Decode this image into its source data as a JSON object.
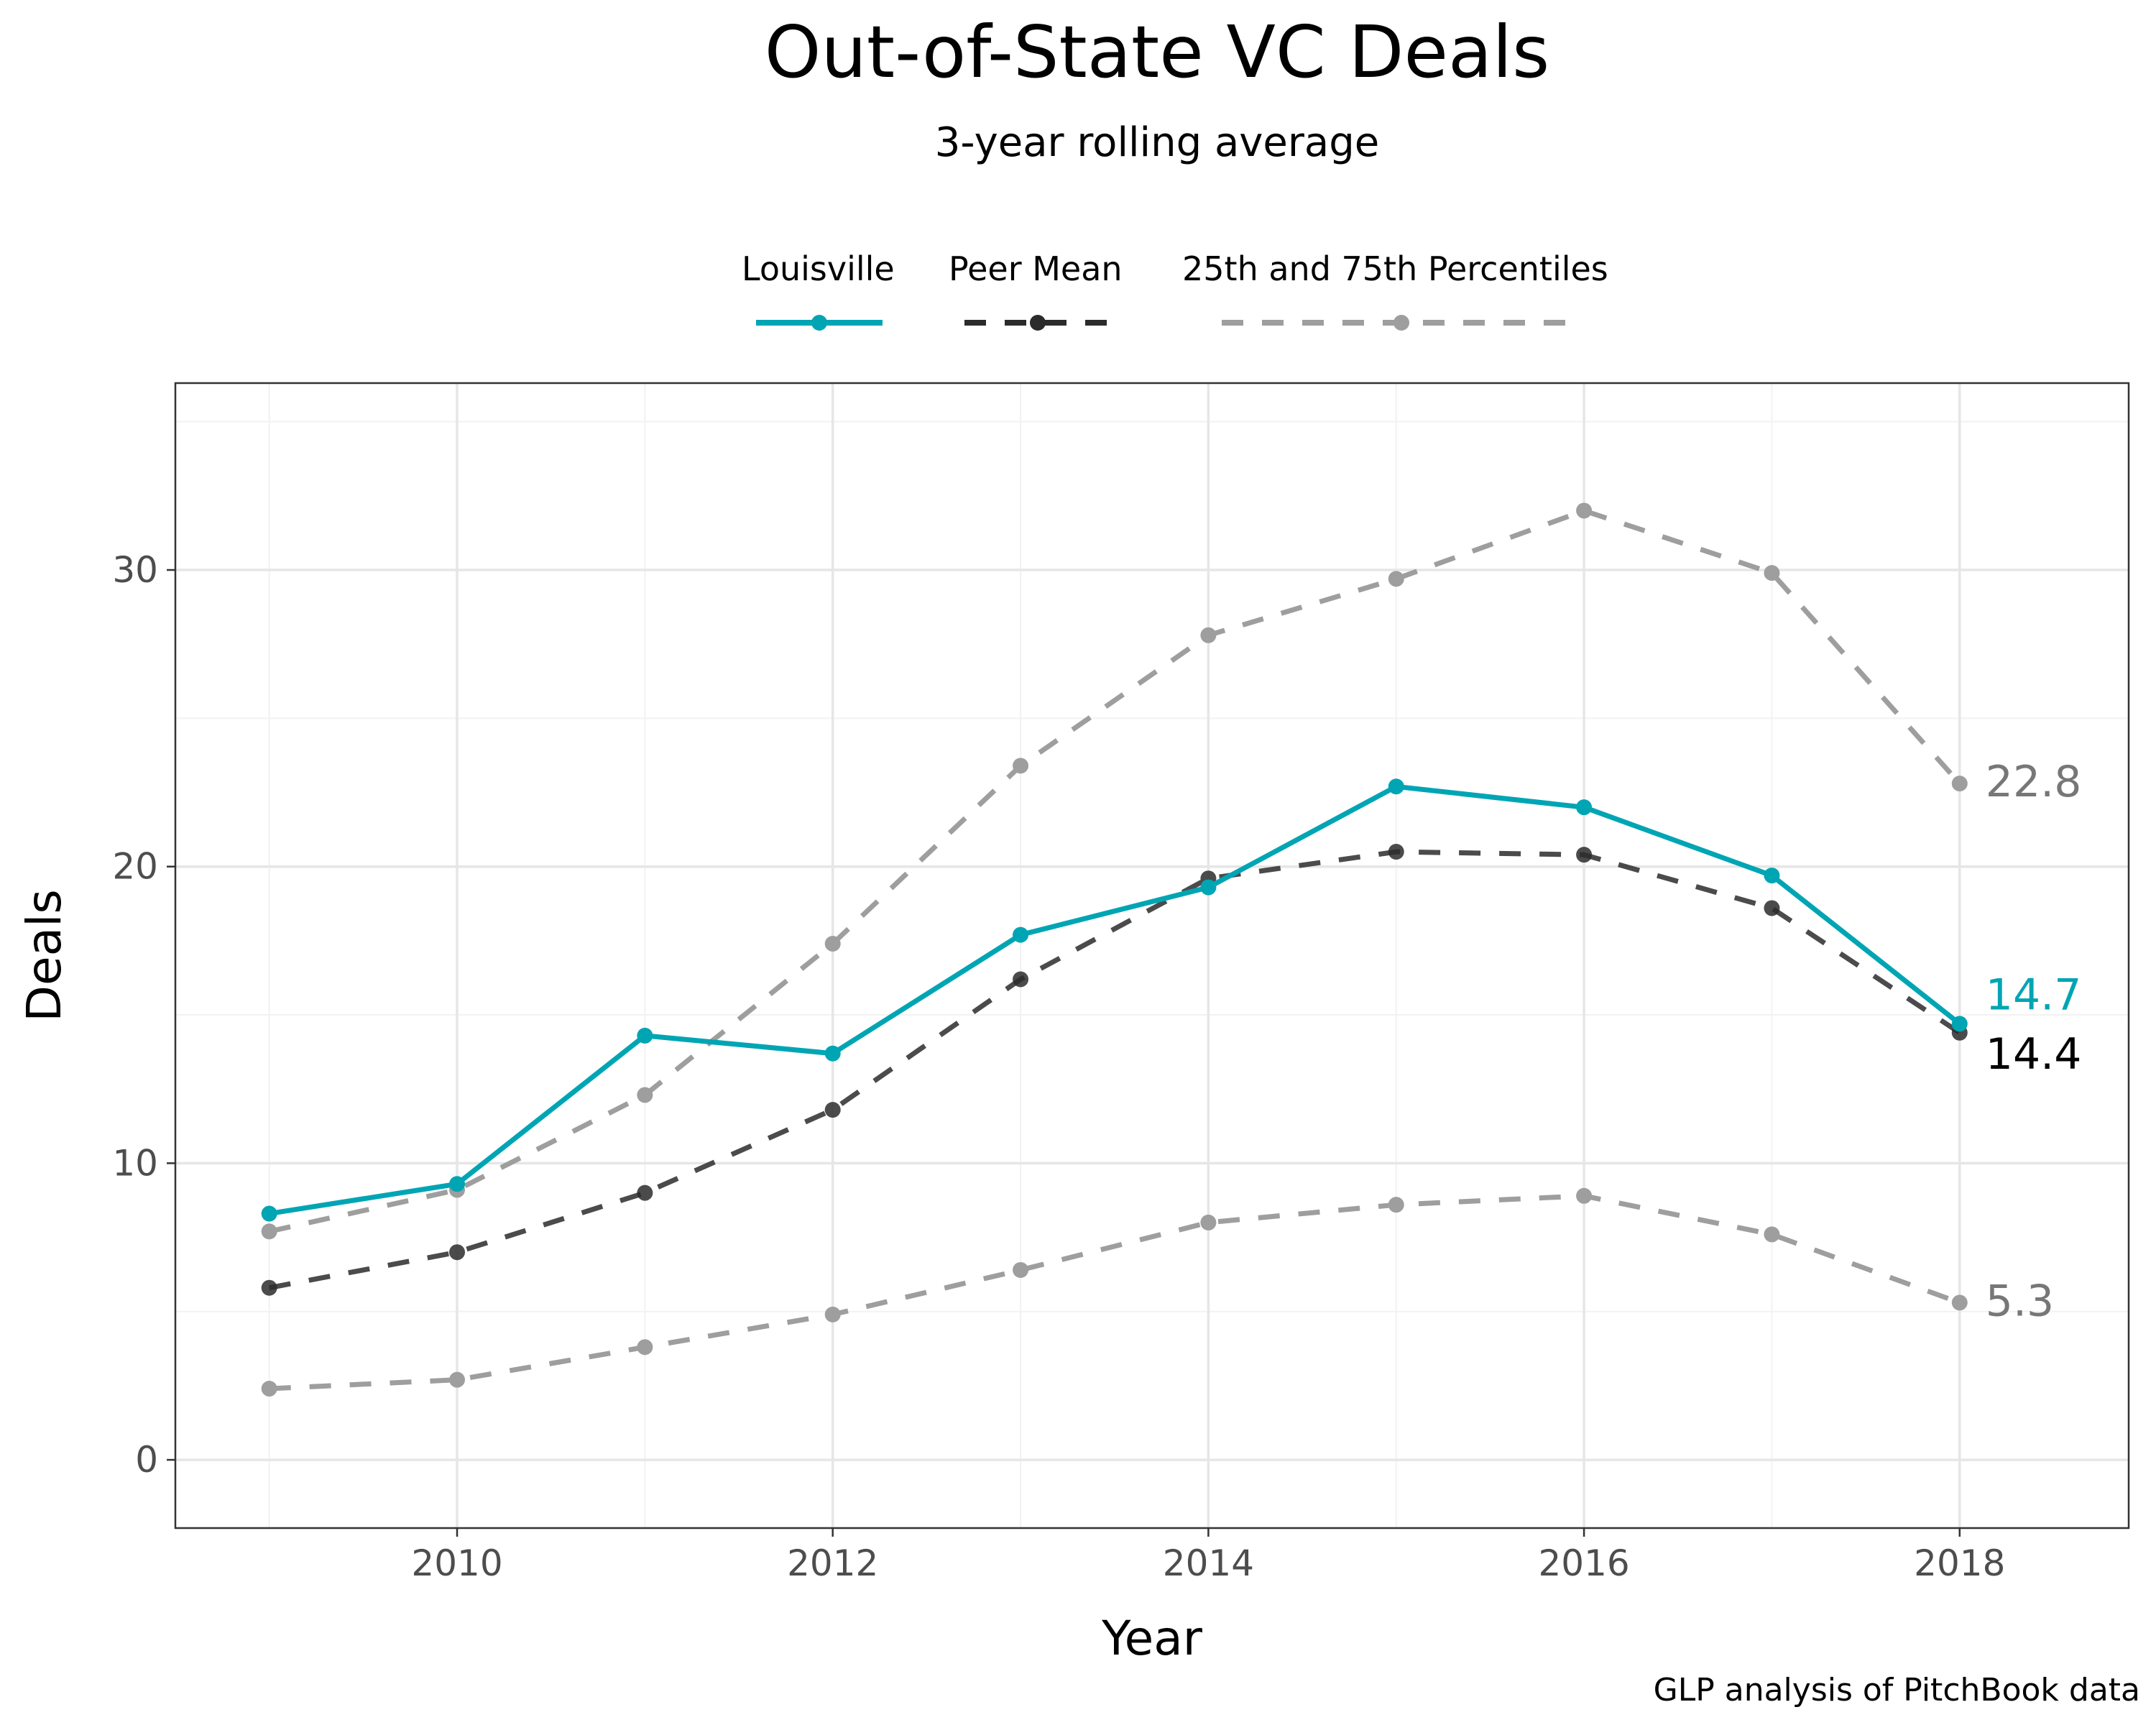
{
  "title": "Out-of-State VC Deals",
  "subtitle": "3-year rolling average",
  "caption": "GLP analysis of PitchBook data",
  "chart_data": {
    "type": "line",
    "title": "Out-of-State VC Deals",
    "subtitle": "3-year rolling average",
    "xlabel": "Year",
    "ylabel": "Deals",
    "x": [
      2009,
      2010,
      2011,
      2012,
      2013,
      2014,
      2015,
      2016,
      2017,
      2018
    ],
    "xlim": [
      2008.5,
      2018.9
    ],
    "ylim": [
      -2.3,
      36.3
    ],
    "xticks": [
      2010,
      2012,
      2014,
      2016,
      2018
    ],
    "yticks": [
      0,
      10,
      20,
      30
    ],
    "grid": true,
    "legend_position": "top",
    "series": [
      {
        "name": "Louisville",
        "color": "#00a5b4",
        "style": "solid",
        "values": [
          8.3,
          9.3,
          14.3,
          13.7,
          17.7,
          19.3,
          22.7,
          22.0,
          19.7,
          14.7
        ],
        "end_label": "14.7"
      },
      {
        "name": "Peer Mean",
        "color": "#2b2b2b",
        "style": "dashed",
        "values": [
          5.8,
          7.0,
          9.0,
          11.8,
          16.2,
          19.6,
          20.5,
          20.4,
          18.6,
          14.4
        ],
        "end_label": "14.4"
      },
      {
        "name": "25th and 75th Percentiles",
        "color": "#9e9e9e",
        "style": "dashed",
        "values": [
          7.7,
          9.1,
          12.3,
          17.4,
          23.4,
          27.8,
          29.7,
          32.0,
          29.9,
          22.8
        ],
        "end_label": "22.8"
      },
      {
        "name": "25th and 75th Percentiles",
        "color": "#9e9e9e",
        "style": "dashed",
        "legend": false,
        "values": [
          2.4,
          2.7,
          3.8,
          4.9,
          6.4,
          8.0,
          8.6,
          8.9,
          7.6,
          5.3
        ],
        "end_label": "5.3"
      }
    ]
  }
}
